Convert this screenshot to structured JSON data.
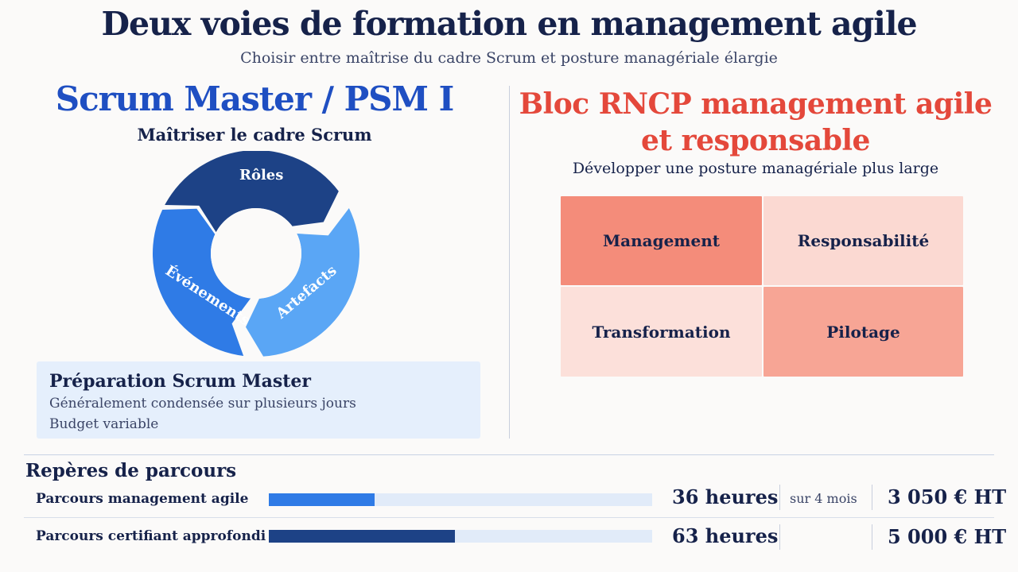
{
  "header": {
    "title": "Deux voies de formation en management agile",
    "subtitle": "Choisir entre maîtrise du cadre Scrum et posture managériale élargie"
  },
  "left": {
    "title": "Scrum Master / PSM I",
    "subtitle": "Maîtriser le cadre Scrum",
    "cycle": {
      "segments": [
        {
          "label": "Rôles",
          "color": "#1d4286"
        },
        {
          "label": "Artefacts",
          "color": "#5aa6f5"
        },
        {
          "label": "Événements",
          "color": "#2f7be6"
        }
      ]
    },
    "prep": {
      "title": "Préparation Scrum Master",
      "line1": "Généralement condensée sur plusieurs jours",
      "line2": "Budget variable"
    }
  },
  "right": {
    "title_line1": "Bloc RNCP management agile",
    "title_line2": "et responsable",
    "subtitle": "Développer une posture managériale plus large",
    "tiles": [
      {
        "label": "Management",
        "color": "#f48c7a"
      },
      {
        "label": "Responsabilité",
        "color": "#fbd9d2"
      },
      {
        "label": "Transformation",
        "color": "#fce0da"
      },
      {
        "label": "Pilotage",
        "color": "#f7a595"
      }
    ]
  },
  "benchmarks": {
    "title": "Repères de parcours",
    "rows": [
      {
        "label": "Parcours management agile",
        "hours": "36 heures",
        "duration": "sur 4 mois",
        "price": "3 050 € HT",
        "hours_value": 36,
        "bar_color": "#2f7be6"
      },
      {
        "label": "Parcours certifiant approfondi",
        "hours": "63 heures",
        "duration": "",
        "price": "5 000 € HT",
        "hours_value": 63,
        "bar_color": "#1d4286"
      }
    ],
    "scale_max_hours": 130
  }
}
